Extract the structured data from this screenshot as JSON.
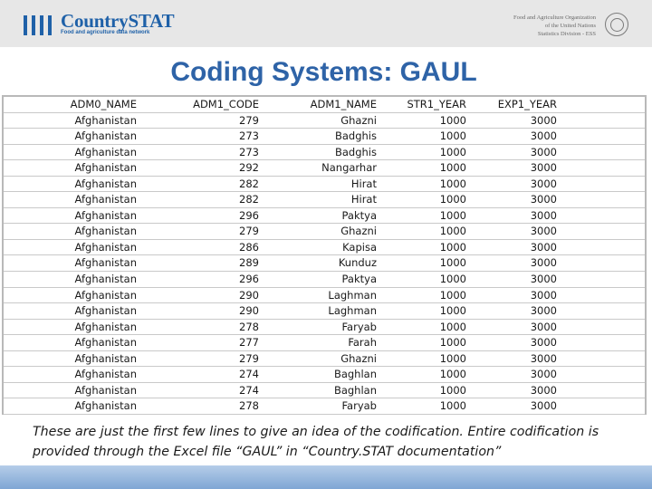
{
  "header": {
    "logo_title": "CountrySTAT",
    "logo_subtitle": "Food and agriculture data network",
    "org_line1": "Food and Agriculture Organization",
    "org_line2": "of the United Nations",
    "org_line3": "Statistics Division - ESS",
    "brand_color": "#1f61a8"
  },
  "title": "Coding Systems: GAUL",
  "table": {
    "columns": [
      "ADM0_NAME",
      "ADM1_CODE",
      "ADM1_NAME",
      "STR1_YEAR",
      "EXP1_YEAR"
    ],
    "rows": [
      [
        "Afghanistan",
        "279",
        "Ghazni",
        "1000",
        "3000"
      ],
      [
        "Afghanistan",
        "273",
        "Badghis",
        "1000",
        "3000"
      ],
      [
        "Afghanistan",
        "273",
        "Badghis",
        "1000",
        "3000"
      ],
      [
        "Afghanistan",
        "292",
        "Nangarhar",
        "1000",
        "3000"
      ],
      [
        "Afghanistan",
        "282",
        "Hirat",
        "1000",
        "3000"
      ],
      [
        "Afghanistan",
        "282",
        "Hirat",
        "1000",
        "3000"
      ],
      [
        "Afghanistan",
        "296",
        "Paktya",
        "1000",
        "3000"
      ],
      [
        "Afghanistan",
        "279",
        "Ghazni",
        "1000",
        "3000"
      ],
      [
        "Afghanistan",
        "286",
        "Kapisa",
        "1000",
        "3000"
      ],
      [
        "Afghanistan",
        "289",
        "Kunduz",
        "1000",
        "3000"
      ],
      [
        "Afghanistan",
        "296",
        "Paktya",
        "1000",
        "3000"
      ],
      [
        "Afghanistan",
        "290",
        "Laghman",
        "1000",
        "3000"
      ],
      [
        "Afghanistan",
        "290",
        "Laghman",
        "1000",
        "3000"
      ],
      [
        "Afghanistan",
        "278",
        "Faryab",
        "1000",
        "3000"
      ],
      [
        "Afghanistan",
        "277",
        "Farah",
        "1000",
        "3000"
      ],
      [
        "Afghanistan",
        "279",
        "Ghazni",
        "1000",
        "3000"
      ],
      [
        "Afghanistan",
        "274",
        "Baghlan",
        "1000",
        "3000"
      ],
      [
        "Afghanistan",
        "274",
        "Baghlan",
        "1000",
        "3000"
      ],
      [
        "Afghanistan",
        "278",
        "Faryab",
        "1000",
        "3000"
      ]
    ]
  },
  "caption": "These are just the first few lines to give an idea of the codification. Entire codification is provided through the Excel file “GAUL” in “Country.STAT documentation”"
}
